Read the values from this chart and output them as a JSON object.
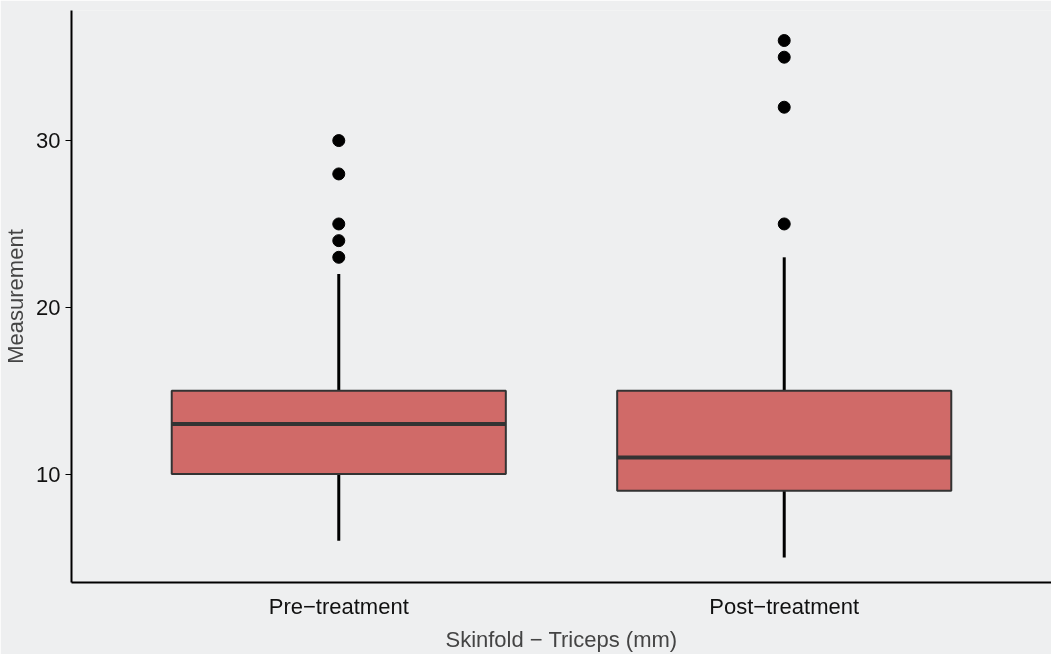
{
  "chart_data": {
    "type": "box",
    "xlabel": "Skinfold − Triceps (mm)",
    "ylabel": "Measurement",
    "categories": [
      "Pre−treatment",
      "Post−treatment"
    ],
    "boxes": [
      {
        "low": 6,
        "q1": 10,
        "median": 13,
        "q3": 15,
        "high": 22,
        "outliers": [
          23,
          24,
          25,
          28,
          30
        ]
      },
      {
        "low": 5,
        "q1": 9,
        "median": 11,
        "q3": 15,
        "high": 23,
        "outliers": [
          25,
          32,
          35,
          36
        ]
      }
    ],
    "color": "#d06a68",
    "ylim": [
      3.5,
      37.8
    ],
    "yticks": [
      10,
      20,
      30
    ],
    "grid": false
  }
}
